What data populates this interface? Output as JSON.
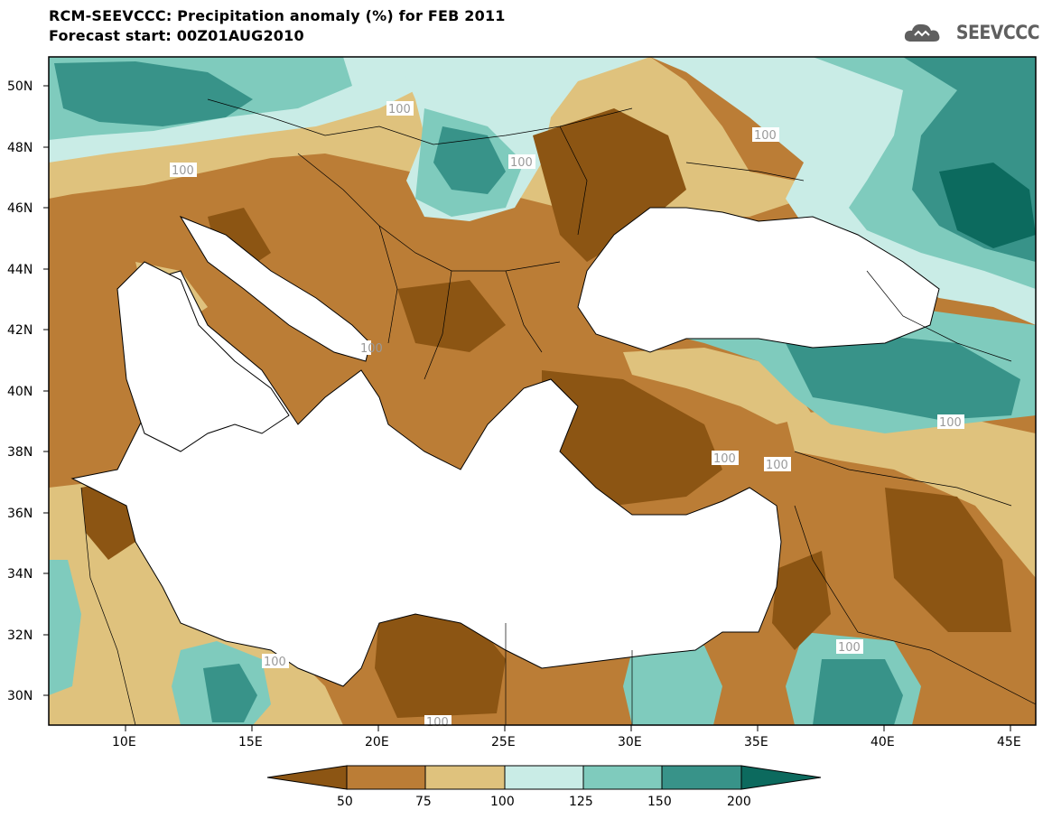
{
  "header": {
    "title_line1": "RCM-SEEVCCC: Precipitation anomaly (%) for FEB 2011",
    "title_line2": "Forecast start: 00Z01AUG2010"
  },
  "logo": {
    "text": "SEEVCCC",
    "icon": "cloud-icon"
  },
  "axes": {
    "lat_labels": [
      "50N",
      "48N",
      "46N",
      "44N",
      "42N",
      "40N",
      "38N",
      "36N",
      "34N",
      "32N",
      "30N"
    ],
    "lon_labels": [
      "10E",
      "15E",
      "20E",
      "25E",
      "30E",
      "35E",
      "40E",
      "45E"
    ]
  },
  "contour_labels": [
    "100",
    "100",
    "100",
    "100",
    "100",
    "100",
    "100",
    "100",
    "100",
    "100",
    "100"
  ],
  "colorbar": {
    "colors": [
      "#8c5513",
      "#bb7d36",
      "#dfc27d",
      "#c9ece6",
      "#7fcbbd",
      "#389389",
      "#0c6a5e"
    ],
    "tick_labels": [
      "50",
      "75",
      "100",
      "125",
      "150",
      "200"
    ]
  },
  "palette": {
    "land_base": "#bb7d36",
    "sea": "#ffffff"
  }
}
